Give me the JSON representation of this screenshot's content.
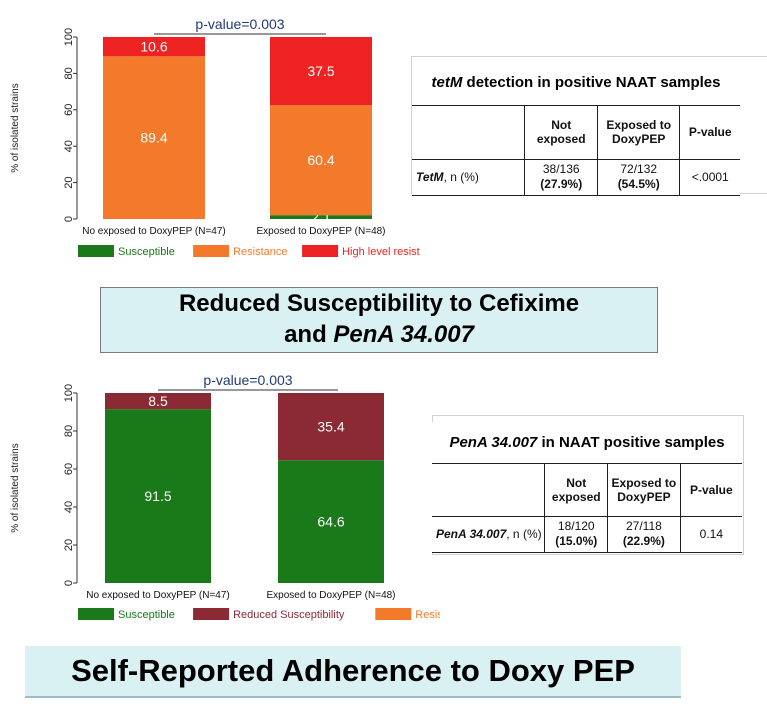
{
  "colors": {
    "susceptible": "#1a7a1a",
    "resistance": "#f37a2a",
    "high_level": "#ee2222",
    "reduced": "#8b2a35",
    "pvalue_text": "#1f3a7a",
    "banner_bg": "#d9f1f3"
  },
  "chart_data": [
    {
      "type": "bar",
      "stacked": true,
      "categories": [
        "No exposed to DoxyPEP (N=47)",
        "Exposed to DoxyPEP (N=48)"
      ],
      "series": [
        {
          "name": "Susceptible",
          "color": "#1a7a1a",
          "values": [
            0,
            2.1
          ],
          "labels": [
            "",
            "2.1"
          ]
        },
        {
          "name": "Resistance",
          "color": "#f37a2a",
          "values": [
            89.4,
            60.4
          ],
          "labels": [
            "89.4",
            "60.4"
          ]
        },
        {
          "name": "High level resistance",
          "color": "#ee2222",
          "values": [
            10.6,
            37.5
          ],
          "labels": [
            "10.6",
            "37.5"
          ]
        }
      ],
      "ylabel": "% of isolated strains",
      "ylim": [
        0,
        100
      ],
      "yticks": [
        0,
        20,
        40,
        60,
        80,
        100
      ],
      "annotation": "p-value=0.003",
      "legend_position": "bottom"
    },
    {
      "type": "bar",
      "stacked": true,
      "categories": [
        "No exposed to DoxyPEP (N=47)",
        "Exposed to DoxyPEP (N=48)"
      ],
      "series": [
        {
          "name": "Susceptible",
          "color": "#1a7a1a",
          "values": [
            91.5,
            64.6
          ],
          "labels": [
            "91.5",
            "64.6"
          ]
        },
        {
          "name": "Reduced Susceptibility",
          "color": "#8b2a35",
          "values": [
            8.5,
            35.4
          ],
          "labels": [
            "8.5",
            "35.4"
          ]
        },
        {
          "name": "Resistance",
          "color": "#f37a2a",
          "values": [
            0,
            0
          ],
          "labels": [
            "",
            ""
          ]
        }
      ],
      "ylabel": "% of isolated strains",
      "ylim": [
        0,
        100
      ],
      "yticks": [
        0,
        20,
        40,
        60,
        80,
        100
      ],
      "annotation": "p-value=0.003",
      "legend_position": "bottom"
    }
  ],
  "table1": {
    "title_italic": "tetM",
    "title_rest": " detection in positive NAAT samples",
    "headers": [
      "Not exposed",
      "Exposed to DoxyPEP",
      "P-value"
    ],
    "row_label_italic": "TetM",
    "row_label_rest": ", n (%)",
    "not_exposed": {
      "count": "38/136",
      "pct": "(27.9%)"
    },
    "exposed": {
      "count": "72/132",
      "pct": "(54.5%)"
    },
    "pvalue": "<.0001"
  },
  "table2": {
    "title_italic": "PenA 34.007",
    "title_rest": " in NAAT positive samples",
    "headers": [
      "Not exposed",
      "Exposed to DoxyPEP",
      "P-value"
    ],
    "row_label_italic": "PenA 34.007",
    "row_label_rest": ", n (%)",
    "not_exposed": {
      "count": "18/120",
      "pct": "(15.0%)"
    },
    "exposed": {
      "count": "27/118",
      "pct": "(22.9%)"
    },
    "pvalue": "0.14"
  },
  "banner1": {
    "line1": "Reduced Susceptibility to Cefixime",
    "line2_plain": "and ",
    "line2_italic": "PenA 34.007"
  },
  "banner2": {
    "text": "Self-Reported Adherence to Doxy PEP"
  }
}
